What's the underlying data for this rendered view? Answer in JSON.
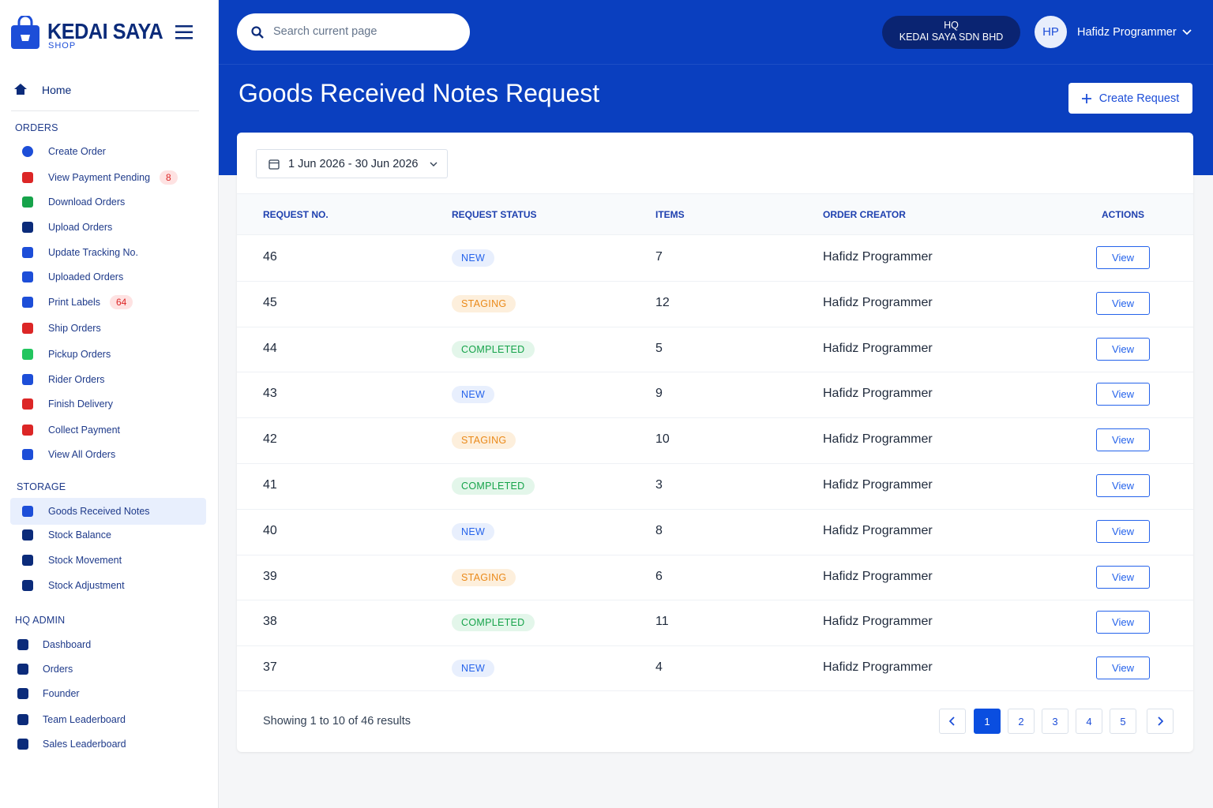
{
  "brand": {
    "name": "KEDAI SAYA",
    "sub": "SHOP"
  },
  "sidebar": {
    "home": "Home",
    "sections": [
      {
        "title": "ORDERS",
        "items": [
          {
            "label": "Create Order"
          },
          {
            "label": "View Payment Pending",
            "badge": 8
          },
          {
            "label": "Download Orders"
          },
          {
            "label": "Upload Orders"
          },
          {
            "label": "Update Tracking No."
          },
          {
            "label": "Uploaded Orders"
          },
          {
            "label": "Print Labels",
            "badge": 64
          },
          {
            "label": "Ship Orders"
          },
          {
            "label": "Pickup Orders"
          },
          {
            "label": "Rider Orders"
          },
          {
            "label": "Finish Delivery"
          },
          {
            "label": "Collect Payment"
          },
          {
            "label": "View All Orders"
          }
        ]
      },
      {
        "title": "STORAGE",
        "items": [
          {
            "label": "Goods Received Notes",
            "active": true
          },
          {
            "label": "Stock Balance"
          },
          {
            "label": "Stock Movement"
          },
          {
            "label": "Stock Adjustment"
          }
        ]
      },
      {
        "title": "HQ ADMIN",
        "items": [
          {
            "label": "Dashboard"
          },
          {
            "label": "Orders"
          },
          {
            "label": "Founder"
          },
          {
            "label": "Team Leaderboard"
          },
          {
            "label": "Sales Leaderboard"
          }
        ]
      }
    ]
  },
  "header": {
    "search_placeholder": "Search current page",
    "org": {
      "line1": "HQ",
      "line2": "KEDAI SAYA SDN BHD"
    },
    "user": {
      "initials": "HP",
      "name": "Hafidz Programmer"
    }
  },
  "page": {
    "title": "Goods Received Notes Request",
    "create_button": "Create Request",
    "date_range": "1 Jun 2026 - 30 Jun 2026"
  },
  "table": {
    "columns": [
      "REQUEST NO.",
      "REQUEST STATUS",
      "ITEMS",
      "ORDER CREATOR",
      "ACTIONS"
    ],
    "rows": [
      [
        46,
        "NEW",
        7,
        "Hafidz Programmer",
        "View"
      ],
      [
        45,
        "STAGING",
        12,
        "Hafidz Programmer",
        "View"
      ],
      [
        44,
        "COMPLETED",
        5,
        "Hafidz Programmer",
        "View"
      ],
      [
        43,
        "NEW",
        9,
        "Hafidz Programmer",
        "View"
      ],
      [
        42,
        "STAGING",
        10,
        "Hafidz Programmer",
        "View"
      ],
      [
        41,
        "COMPLETED",
        3,
        "Hafidz Programmer",
        "View"
      ],
      [
        40,
        "NEW",
        8,
        "Hafidz Programmer",
        "View"
      ],
      [
        39,
        "STAGING",
        6,
        "Hafidz Programmer",
        "View"
      ],
      [
        38,
        "COMPLETED",
        11,
        "Hafidz Programmer",
        "View"
      ],
      [
        37,
        "NEW",
        4,
        "Hafidz Programmer",
        "View"
      ]
    ]
  },
  "pagination": {
    "summary": "Showing 1 to 10 of 46 results",
    "pages": [
      1,
      2,
      3,
      4,
      5
    ],
    "current": 1
  }
}
